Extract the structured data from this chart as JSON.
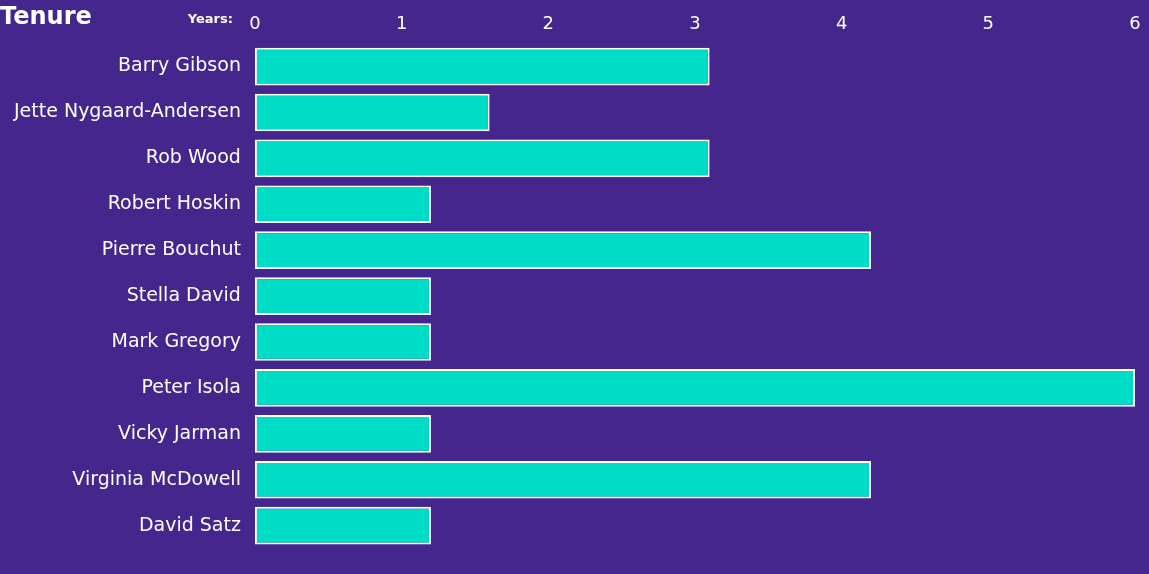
{
  "chart_data": {
    "type": "bar",
    "orientation": "horizontal",
    "title": "Tenure",
    "xlabel": "Years:",
    "categories": [
      "Barry Gibson",
      "Jette Nygaard-Andersen",
      "Rob Wood",
      "Robert Hoskin",
      "Pierre Bouchut",
      "Stella David",
      "Mark Gregory",
      "Peter Isola",
      "Vicky Jarman",
      "Virginia McDowell",
      "David Satz"
    ],
    "values": [
      3.1,
      1.6,
      3.1,
      1.2,
      4.2,
      1.2,
      1.2,
      6.0,
      1.2,
      4.2,
      1.2
    ],
    "color": "#00ddc6",
    "xlim": [
      0,
      6
    ],
    "xticks": [
      0,
      1,
      2,
      3,
      4,
      5,
      6
    ],
    "grid": false,
    "legend": false
  }
}
